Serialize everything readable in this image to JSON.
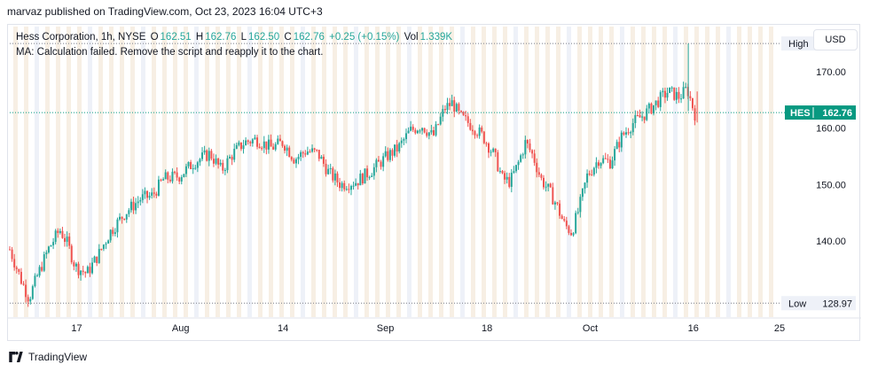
{
  "header": {
    "published": "marvaz published on TradingView.com, Oct 23, 2023 16:04 UTC+3"
  },
  "legend": {
    "symbol": "Hess Corporation, 1h, NYSE",
    "o_label": "O",
    "o_value": "162.51",
    "h_label": "H",
    "h_value": "162.76",
    "l_label": "L",
    "l_value": "162.50",
    "c_label": "C",
    "c_value": "162.76",
    "change": "+0.25 (+0.15%)",
    "vol_label": "Vol",
    "vol_value": "1.339K",
    "ma_message": "MA: Calculation failed. Remove the script and reapply it to the chart."
  },
  "currency_button": "USD",
  "footer": {
    "brand": "TradingView"
  },
  "colors": {
    "up": "#26a69a",
    "down": "#ef5350",
    "accent": "#089981",
    "grid_band": "#f7efe4"
  },
  "chart_data": {
    "type": "candlestick",
    "symbol": "HES",
    "ylim": [
      126.5,
      178
    ],
    "y_ticks": [
      "140.00",
      "150.00",
      "160.00",
      "170.00"
    ],
    "x_ticks": [
      "17",
      "Aug",
      "14",
      "Sep",
      "18",
      "Oct",
      "16",
      "25"
    ],
    "x_tick_pos": [
      0.087,
      0.222,
      0.355,
      0.488,
      0.62,
      0.754,
      0.888,
      1.0
    ],
    "markers": [
      {
        "label": "High",
        "value": "175.00",
        "y": 175.0
      },
      {
        "label": "Low",
        "value": "128.97",
        "y": 128.97
      }
    ],
    "last_price": {
      "label": "HES",
      "value": "162.76",
      "y": 162.76
    },
    "path": [
      [
        0.0,
        138.5
      ],
      [
        0.015,
        133.0
      ],
      [
        0.025,
        129.8
      ],
      [
        0.035,
        133.5
      ],
      [
        0.05,
        138.5
      ],
      [
        0.065,
        142.0
      ],
      [
        0.075,
        139.5
      ],
      [
        0.085,
        135.5
      ],
      [
        0.1,
        134.2
      ],
      [
        0.115,
        137.5
      ],
      [
        0.13,
        141.5
      ],
      [
        0.15,
        145.0
      ],
      [
        0.17,
        147.5
      ],
      [
        0.185,
        148.0
      ],
      [
        0.2,
        151.0
      ],
      [
        0.22,
        151.5
      ],
      [
        0.24,
        154.0
      ],
      [
        0.26,
        155.5
      ],
      [
        0.275,
        152.5
      ],
      [
        0.29,
        155.5
      ],
      [
        0.305,
        157.5
      ],
      [
        0.32,
        158.0
      ],
      [
        0.34,
        156.5
      ],
      [
        0.355,
        157.5
      ],
      [
        0.37,
        154.5
      ],
      [
        0.385,
        156.0
      ],
      [
        0.4,
        155.5
      ],
      [
        0.415,
        152.0
      ],
      [
        0.43,
        150.0
      ],
      [
        0.45,
        150.5
      ],
      [
        0.47,
        152.5
      ],
      [
        0.49,
        155.0
      ],
      [
        0.505,
        156.5
      ],
      [
        0.52,
        159.5
      ],
      [
        0.535,
        160.5
      ],
      [
        0.55,
        158.5
      ],
      [
        0.565,
        163.5
      ],
      [
        0.575,
        164.5
      ],
      [
        0.585,
        162.0
      ],
      [
        0.6,
        160.5
      ],
      [
        0.615,
        158.5
      ],
      [
        0.63,
        155.0
      ],
      [
        0.64,
        151.0
      ],
      [
        0.65,
        150.5
      ],
      [
        0.66,
        153.5
      ],
      [
        0.67,
        157.5
      ],
      [
        0.68,
        155.0
      ],
      [
        0.69,
        151.0
      ],
      [
        0.7,
        149.0
      ],
      [
        0.71,
        146.5
      ],
      [
        0.72,
        143.0
      ],
      [
        0.73,
        141.5
      ],
      [
        0.74,
        146.0
      ],
      [
        0.75,
        151.5
      ],
      [
        0.765,
        154.5
      ],
      [
        0.78,
        154.0
      ],
      [
        0.795,
        158.5
      ],
      [
        0.81,
        161.0
      ],
      [
        0.825,
        162.5
      ],
      [
        0.84,
        164.5
      ],
      [
        0.855,
        166.5
      ],
      [
        0.87,
        165.5
      ],
      [
        0.88,
        167.0
      ],
      [
        0.89,
        162.5
      ]
    ]
  }
}
